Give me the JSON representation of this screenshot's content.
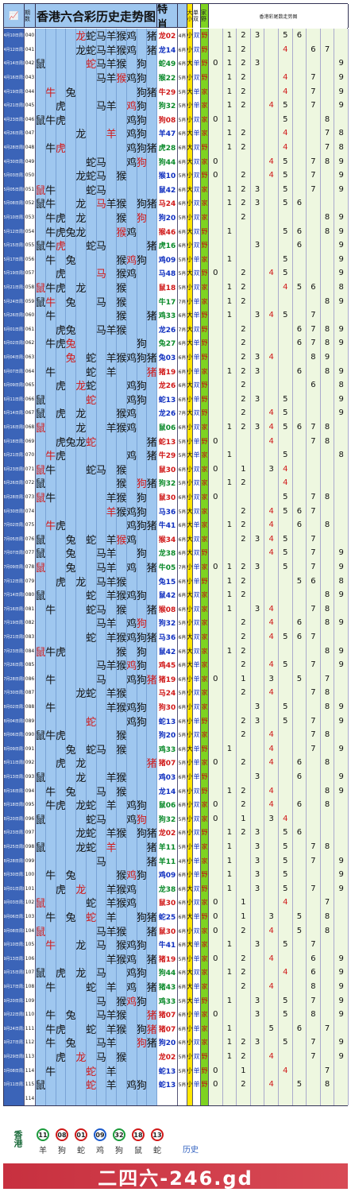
{
  "title": "香港六合彩历史走势图",
  "header": {
    "period": "期数",
    "special": "特肖",
    "size": "大小",
    "parity": "单双",
    "home": "家野",
    "tailTitle": "香港彩尾数走势图"
  },
  "zodiac": [
    "鼠",
    "牛",
    "虎",
    "兔",
    "龙",
    "蛇",
    "马",
    "羊",
    "猴",
    "鸡",
    "狗",
    "猪"
  ],
  "rows": [
    {
      "d": "04月10日周日",
      "p": "040",
      "z": "----GYGYGG-G",
      "r": "----1---0---",
      "sp": "龙02",
      "c": "red",
      "w": "4肖",
      "sz": "小",
      "pa": "双",
      "hw": "野",
      "t": "-123-56---"
    },
    {
      "d": "04月12日周二",
      "p": "041",
      "z": "----1GG1GG-1",
      "r": "------------",
      "sp": "龙14",
      "c": "blu",
      "w": "6肖",
      "sz": "小",
      "pa": "双",
      "hw": "野",
      "t": "-12--4-67-9"
    },
    {
      "d": "04月14日周四",
      "p": "042",
      "z": "1----1111-1-",
      "r": "-----1------",
      "sp": "蛇49",
      "c": "grn",
      "w": "6肖",
      "sz": "大",
      "pa": "单",
      "hw": "野",
      "t": "0123-----9"
    },
    {
      "d": "04月16日周六",
      "p": "043",
      "z": "------11111-",
      "r": "--------1---",
      "sp": "猴22",
      "c": "grn",
      "w": "5肖",
      "sz": "小",
      "pa": "双",
      "hw": "野",
      "t": "-12--4-7-9"
    },
    {
      "d": "04月19日周二",
      "p": "044",
      "z": "-1-1------11",
      "r": "-1----------",
      "sp": "牛29",
      "c": "red",
      "w": "5肖",
      "sz": "大",
      "pa": "单",
      "hw": "家",
      "t": "-12--4-7-9"
    },
    {
      "d": "04月21日周四",
      "p": "045",
      "z": "--1---11-11-",
      "r": "---------1--",
      "sp": "狗32",
      "c": "grn",
      "w": "5肖",
      "sz": "小",
      "pa": "单",
      "hw": "家",
      "t": "-12-45-7-9"
    },
    {
      "d": "04月23日周六",
      "p": "046",
      "z": "111------11-",
      "r": "------------",
      "sp": "狗08",
      "c": "red",
      "w": "5肖",
      "sz": "小",
      "pa": "双",
      "hw": "家",
      "t": "01---5--8-"
    },
    {
      "d": "04月26日周二",
      "p": "047",
      "z": "----1--1-11-",
      "r": "-------1----",
      "sp": "羊47",
      "c": "blu",
      "w": "6肖",
      "sz": "大",
      "pa": "单",
      "hw": "家",
      "t": "-12--4--78"
    },
    {
      "d": "04月28日周四",
      "p": "048",
      "z": "-11------111",
      "r": "--1---------",
      "sp": "虎28",
      "c": "grn",
      "w": "6肖",
      "sz": "大",
      "pa": "双",
      "hw": "野",
      "t": "-12--4--78"
    },
    {
      "d": "04月30日周六",
      "p": "049",
      "z": "-----11--11-",
      "r": "----------1-",
      "sp": "狗44",
      "c": "grn",
      "w": "6肖",
      "sz": "大",
      "pa": "双",
      "hw": "家",
      "t": "0---45-789"
    },
    {
      "d": "05月03日周二",
      "p": "050",
      "z": "----111-1---",
      "r": "------------",
      "sp": "猴10",
      "c": "blu",
      "w": "5肖",
      "sz": "小",
      "pa": "双",
      "hw": "野",
      "t": "0-2-45-7-9"
    },
    {
      "d": "05月05日周四",
      "p": "051",
      "z": "11---11-----",
      "r": "1-----------",
      "sp": "鼠42",
      "c": "blu",
      "w": "6肖",
      "sz": "大",
      "pa": "双",
      "hw": "家",
      "t": "-123-5-7-9"
    },
    {
      "d": "05月08日周日",
      "p": "052",
      "z": "11--1-111-11",
      "r": "------1-----",
      "sp": "马24",
      "c": "red",
      "w": "6肖",
      "sz": "小",
      "pa": "双",
      "hw": "家",
      "t": "-123-56---"
    },
    {
      "d": "05月10日周二",
      "p": "053",
      "z": "-11-1---1-1-",
      "r": "----------1-",
      "sp": "狗20",
      "c": "blu",
      "w": "5肖",
      "sz": "小",
      "pa": "双",
      "hw": "家",
      "t": "--2-----89"
    },
    {
      "d": "05月12日周四",
      "p": "054",
      "z": "-1111---11--",
      "r": "--------1---",
      "sp": "猴46",
      "c": "red",
      "w": "6肖",
      "sz": "大",
      "pa": "双",
      "hw": "野",
      "t": "-1---56-89"
    },
    {
      "d": "05月15日周日",
      "p": "055",
      "z": "111--11----1",
      "r": "--1---------",
      "sp": "虎16",
      "c": "grn",
      "w": "6肖",
      "sz": "小",
      "pa": "双",
      "hw": "野",
      "t": "---3--6--9"
    },
    {
      "d": "05月17日周二",
      "p": "056",
      "z": "-1-1----111-",
      "r": "---------1--",
      "sp": "鸡09",
      "c": "blu",
      "w": "5肖",
      "sz": "小",
      "pa": "单",
      "hw": "家",
      "t": "-1---5---9"
    },
    {
      "d": "05月19日周四",
      "p": "057",
      "z": "--1---1-11--",
      "r": "------1-----",
      "sp": "马48",
      "c": "blu",
      "w": "5肖",
      "sz": "大",
      "pa": "双",
      "hw": "野",
      "t": "0-2-45---9"
    },
    {
      "d": "05月21日周六",
      "p": "058",
      "z": "111-1---1---",
      "r": "1-----------",
      "sp": "鼠18",
      "c": "red",
      "w": "5肖",
      "sz": "小",
      "pa": "双",
      "hw": "家",
      "t": "-12--456-89"
    },
    {
      "d": "05月24日周二",
      "p": "059",
      "z": "11-1--1-1---",
      "r": "-1----------",
      "sp": "牛17",
      "c": "grn",
      "w": "7肖",
      "sz": "小",
      "pa": "单",
      "hw": "家",
      "t": "-12-----89"
    },
    {
      "d": "05月26日周四",
      "p": "060",
      "z": "-1------1--1",
      "r": "---------1--",
      "sp": "鸡33",
      "c": "grn",
      "w": "6肖",
      "sz": "大",
      "pa": "单",
      "hw": "野",
      "t": "-1-345-7-"
    },
    {
      "d": "06月01日周三",
      "p": "061",
      "z": "--11--111---",
      "r": "------------",
      "sp": "龙26",
      "c": "blu",
      "w": "7肖",
      "sz": "大",
      "pa": "双",
      "hw": "野",
      "t": "--2---6789"
    },
    {
      "d": "06月02日周四",
      "p": "062",
      "z": "-111------1-",
      "r": "---1--------",
      "sp": "兔27",
      "c": "grn",
      "w": "6肖",
      "sz": "大",
      "pa": "单",
      "hw": "野",
      "t": "--2---6789"
    },
    {
      "d": "06月04日周六",
      "p": "063",
      "z": "---1-1-11111",
      "r": "---1--------",
      "sp": "兔03",
      "c": "blu",
      "w": "6肖",
      "sz": "小",
      "pa": "单",
      "hw": "野",
      "t": "--234--89"
    },
    {
      "d": "06月07日周二",
      "p": "064",
      "z": "-1---1-1---1",
      "r": "-----------1",
      "sp": "猪19",
      "c": "red",
      "w": "6肖",
      "sz": "小",
      "pa": "单",
      "hw": "家",
      "t": "-123--6-89"
    },
    {
      "d": "06月09日周四",
      "p": "065",
      "z": "--1-11---11-",
      "r": "----1-------",
      "sp": "龙26",
      "c": "red",
      "w": "6肖",
      "sz": "大",
      "pa": "双",
      "hw": "野",
      "t": "--2----6-89"
    },
    {
      "d": "06月11日周六",
      "p": "066",
      "z": "1----1---11-",
      "r": "-----1------",
      "sp": "蛇13",
      "c": "blu",
      "w": "6肖",
      "sz": "小",
      "pa": "单",
      "hw": "野",
      "t": "--23-5---9"
    },
    {
      "d": "06月14日周二",
      "p": "067",
      "z": "1-1-1---11--",
      "r": "------------",
      "sp": "龙26",
      "c": "blu",
      "w": "7肖",
      "sz": "大",
      "pa": "双",
      "hw": "野",
      "t": "--2-45---9"
    },
    {
      "d": "06月16日周四",
      "p": "068",
      "z": "1---1--111--",
      "r": "1-----------",
      "sp": "鼠06",
      "c": "grn",
      "w": "6肖",
      "sz": "小",
      "pa": "双",
      "hw": "家",
      "t": "-12345678-"
    },
    {
      "d": "06月18日周六",
      "p": "069",
      "z": "--1111-----1",
      "r": "-----1------",
      "sp": "蛇13",
      "c": "red",
      "w": "5肖",
      "sz": "小",
      "pa": "单",
      "hw": "野",
      "t": "0---4--78"
    },
    {
      "d": "06月21日周二",
      "p": "070",
      "z": "-11------1-1",
      "r": "-1----------",
      "sp": "牛29",
      "c": "red",
      "w": "5肖",
      "sz": "大",
      "pa": "单",
      "hw": "家",
      "t": "-1---5---89"
    },
    {
      "d": "06月23日周四",
      "p": "071",
      "z": "11---11-1---",
      "r": "1-----------",
      "sp": "鼠30",
      "c": "red",
      "w": "6肖",
      "sz": "小",
      "pa": "双",
      "hw": "家",
      "t": "0-1-34---"
    },
    {
      "d": "06月26日周日",
      "p": "072",
      "z": "1-------1-11",
      "r": "----------1-",
      "sp": "狗32",
      "c": "grn",
      "w": "5肖",
      "sz": "小",
      "pa": "双",
      "hw": "家",
      "t": "-12--4----"
    },
    {
      "d": "06月28日周二",
      "p": "073",
      "z": "11-----11-1-",
      "r": "1-----------",
      "sp": "鼠30",
      "c": "red",
      "w": "6肖",
      "sz": "小",
      "pa": "双",
      "hw": "家",
      "t": "0----5-78"
    },
    {
      "d": "06月30日周四",
      "p": "074",
      "z": "-------1111-",
      "r": "-------1----",
      "sp": "马36",
      "c": "blu",
      "w": "5肖",
      "sz": "大",
      "pa": "双",
      "hw": "家",
      "t": "--2-4567-"
    },
    {
      "d": "07月02日周六",
      "p": "075",
      "z": "-11------111",
      "r": "-1----------",
      "sp": "牛41",
      "c": "blu",
      "w": "6肖",
      "sz": "大",
      "pa": "单",
      "hw": "家",
      "t": "-12-4-6-8"
    },
    {
      "d": "07月05日周二",
      "p": "076",
      "z": "1--1-1-111--",
      "r": "--------1---",
      "sp": "猴34",
      "c": "red",
      "w": "6肖",
      "sz": "大",
      "pa": "双",
      "hw": "家",
      "t": "--2345-7-"
    },
    {
      "d": "07月07日周四",
      "p": "077",
      "z": "1--1--11--1-",
      "r": "------------",
      "sp": "龙38",
      "c": "grn",
      "w": "6肖",
      "sz": "大",
      "pa": "双",
      "hw": "野",
      "t": "----45-7-9"
    },
    {
      "d": "07月09日周六",
      "p": "078",
      "z": "1--1--11-1-1",
      "r": "1-----------",
      "sp": "牛05",
      "c": "grn",
      "w": "7肖",
      "sz": "小",
      "pa": "单",
      "hw": "家",
      "t": "0123-5-7-9"
    },
    {
      "d": "07月12日周二",
      "p": "079",
      "z": "--1-1-111---",
      "r": "-----------1",
      "sp": "兔15",
      "c": "blu",
      "w": "6肖",
      "sz": "小",
      "pa": "单",
      "hw": "野",
      "t": "-12---56-89"
    },
    {
      "d": "07月14日周四",
      "p": "080",
      "z": "1----1-1111-",
      "r": "------------",
      "sp": "鼠42",
      "c": "blu",
      "w": "6肖",
      "sz": "大",
      "pa": "双",
      "hw": "家",
      "t": "-12-----89"
    },
    {
      "d": "07月16日周六",
      "p": "081",
      "z": "-1---11-1--1",
      "r": "------------",
      "sp": "猴08",
      "c": "red",
      "w": "6肖",
      "sz": "小",
      "pa": "双",
      "hw": "家",
      "t": "-1-34--78-"
    },
    {
      "d": "07月19日周二",
      "p": "082",
      "z": "------11-11-",
      "r": "----------1-",
      "sp": "狗32",
      "c": "blu",
      "w": "5肖",
      "sz": "小",
      "pa": "双",
      "hw": "家",
      "t": "--2-4-6-89"
    },
    {
      "d": "07月21日周四",
      "p": "083",
      "z": "-----1-11111",
      "r": "------------",
      "sp": "马36",
      "c": "blu",
      "w": "6肖",
      "sz": "大",
      "pa": "双",
      "hw": "家",
      "t": "--2-4567-"
    },
    {
      "d": "07月23日周六",
      "p": "084",
      "z": "111-----1-1-",
      "r": "1-----------",
      "sp": "鼠42",
      "c": "blu",
      "w": "6肖",
      "sz": "大",
      "pa": "双",
      "hw": "家",
      "t": "-12-----89"
    },
    {
      "d": "07月26日周二",
      "p": "085",
      "z": "------11111-",
      "r": "---------1--",
      "sp": "鸡45",
      "c": "red",
      "w": "6肖",
      "sz": "大",
      "pa": "单",
      "hw": "家",
      "t": "--2-45-7-9"
    },
    {
      "d": "07月28日周四",
      "p": "086",
      "z": "-1----1--111",
      "r": "-----------1",
      "sp": "猪19",
      "c": "red",
      "w": "6肖",
      "sz": "小",
      "pa": "单",
      "hw": "家",
      "t": "0-1-3-5-7"
    },
    {
      "d": "07月30日周六",
      "p": "087",
      "z": "----11-11---",
      "r": "------1-----",
      "sp": "马24",
      "c": "red",
      "w": "5肖",
      "sz": "小",
      "pa": "双",
      "hw": "家",
      "t": "--2-4--78"
    },
    {
      "d": "08月02日周二",
      "p": "088",
      "z": "-1-----1111-",
      "r": "------------",
      "sp": "狗30",
      "c": "red",
      "w": "6肖",
      "sz": "小",
      "pa": "双",
      "hw": "家",
      "t": "---3-5--89"
    },
    {
      "d": "08月04日周四",
      "p": "089",
      "z": "-----1---11-",
      "r": "-----1------",
      "sp": "蛇13",
      "c": "blu",
      "w": "6肖",
      "sz": "小",
      "pa": "单",
      "hw": "野",
      "t": "--23-5-7-9"
    },
    {
      "d": "08月06日周六",
      "p": "090",
      "z": "111-----1---",
      "r": "----------1-",
      "sp": "狗20",
      "c": "blu",
      "w": "5肖",
      "sz": "小",
      "pa": "双",
      "hw": "家",
      "t": "--2-4--78"
    },
    {
      "d": "08月09日周二",
      "p": "091",
      "z": "---1-11-1---",
      "r": "---------1--",
      "sp": "鸡33",
      "c": "grn",
      "w": "6肖",
      "sz": "大",
      "pa": "单",
      "hw": "野",
      "t": "-1--4--7-9"
    },
    {
      "d": "08月11日周四",
      "p": "092",
      "z": "--1-1------1",
      "r": "-----------1",
      "sp": "猪07",
      "c": "red",
      "w": "5肖",
      "sz": "小",
      "pa": "单",
      "hw": "家",
      "t": "0-2-4-6-8"
    },
    {
      "d": "08月13日周六",
      "p": "093",
      "z": "1---1--11---",
      "r": "------------",
      "sp": "鸡03",
      "c": "blu",
      "w": "6肖",
      "sz": "小",
      "pa": "单",
      "hw": "野",
      "t": "---3--6--9"
    },
    {
      "d": "08月16日周二",
      "p": "094",
      "z": "-1-1--1-1---",
      "r": "------------",
      "sp": "龙14",
      "c": "blu",
      "w": "6肖",
      "sz": "小",
      "pa": "双",
      "hw": "野",
      "t": "-12-4---89"
    },
    {
      "d": "08月18日周四",
      "p": "095",
      "z": "-11-11-1-11-",
      "r": "------------",
      "sp": "鼠06",
      "c": "grn",
      "w": "6肖",
      "sz": "小",
      "pa": "双",
      "hw": "家",
      "t": "0-2-4-6-8"
    },
    {
      "d": "08月20日周六",
      "p": "096",
      "z": "1----11--11-",
      "r": "----------1-",
      "sp": "狗32",
      "c": "grn",
      "w": "5肖",
      "sz": "小",
      "pa": "双",
      "hw": "家",
      "t": "0-1-34----"
    },
    {
      "d": "08月23日周二",
      "p": "097",
      "z": "----11-11-11",
      "r": "------------",
      "sp": "龙02",
      "c": "red",
      "w": "6肖",
      "sz": "小",
      "pa": "双",
      "hw": "野",
      "t": "-123-56---"
    },
    {
      "d": "08月25日周四",
      "p": "098",
      "z": "1---11-1---1",
      "r": "-------1----",
      "sp": "羊11",
      "c": "grn",
      "w": "5肖",
      "sz": "小",
      "pa": "单",
      "hw": "家",
      "t": "-1-3-5-78"
    },
    {
      "d": "08月28日周日",
      "p": "099",
      "z": "------1----1",
      "r": "-------1----",
      "sp": "羊11",
      "c": "grn",
      "w": "4肖",
      "sz": "小",
      "pa": "单",
      "hw": "家",
      "t": "-1-3-5-7-9"
    },
    {
      "d": "08月30日周二",
      "p": "100",
      "z": "-1-1----111-",
      "r": "---------1--",
      "sp": "鸡09",
      "c": "blu",
      "w": "6肖",
      "sz": "小",
      "pa": "单",
      "hw": "野",
      "t": "-1-3-5---9"
    },
    {
      "d": "09月01日周四",
      "p": "101",
      "z": "--1-1--111--",
      "r": "----1-------",
      "sp": "龙38",
      "c": "grn",
      "w": "6肖",
      "sz": "大",
      "pa": "双",
      "hw": "野",
      "t": "-1-3-5-7-9"
    },
    {
      "d": "09月03日周六",
      "p": "102",
      "z": "1----1-111--",
      "r": "1-----------",
      "sp": "鼠30",
      "c": "red",
      "w": "6肖",
      "sz": "小",
      "pa": "双",
      "hw": "家",
      "t": "0-1--4--7-9"
    },
    {
      "d": "09月06日周二",
      "p": "103",
      "z": "-1-1-1-1--11",
      "r": "-----1------",
      "sp": "蛇25",
      "c": "blu",
      "w": "6肖",
      "sz": "大",
      "pa": "单",
      "hw": "野",
      "t": "0-1-3-5-8-9"
    },
    {
      "d": "09月08日周四",
      "p": "104",
      "z": "1-----111--1",
      "r": "1-----------",
      "sp": "鼠30",
      "c": "red",
      "w": "6肖",
      "sz": "小",
      "pa": "双",
      "hw": "家",
      "t": "0-2-4-5-8-9"
    },
    {
      "d": "09月10日周六",
      "p": "105",
      "z": "-1--1-1-111-",
      "r": "-1----------",
      "sp": "牛41",
      "c": "blu",
      "w": "6肖",
      "sz": "大",
      "pa": "单",
      "hw": "家",
      "t": "-1-3-5-7-"
    },
    {
      "d": "09月13日周二",
      "p": "106",
      "z": "-------111-1",
      "r": "------------",
      "sp": "猪19",
      "c": "red",
      "w": "5肖",
      "sz": "小",
      "pa": "单",
      "hw": "家",
      "t": "0-2-4--6-9"
    },
    {
      "d": "09月15日周四",
      "p": "107",
      "z": "1-1-1-1--11-",
      "r": "------------",
      "sp": "狗44",
      "c": "grn",
      "w": "6肖",
      "sz": "大",
      "pa": "双",
      "hw": "家",
      "t": "-12--4-6-9"
    },
    {
      "d": "09月17日周六",
      "p": "108",
      "z": "-1---1-1-1-1",
      "r": "------------",
      "sp": "猪43",
      "c": "grn",
      "w": "6肖",
      "sz": "大",
      "pa": "单",
      "hw": "家",
      "t": "--2-4--8-9"
    },
    {
      "d": "09月20日周二",
      "p": "109",
      "z": "------1-111-",
      "r": "---------1--",
      "sp": "鸡33",
      "c": "grn",
      "w": "5肖",
      "sz": "大",
      "pa": "单",
      "hw": "野",
      "t": "-1-3-5-7-9"
    },
    {
      "d": "09月22日周四",
      "p": "110",
      "z": "-1-1--111--1",
      "r": "-----------1",
      "sp": "猪07",
      "c": "red",
      "w": "6肖",
      "sz": "小",
      "pa": "单",
      "hw": "家",
      "t": "0--3-5-8-9"
    },
    {
      "d": "09月24日周六",
      "p": "111",
      "z": "-11--1-11-11",
      "r": "-----------1",
      "sp": "猪07",
      "c": "red",
      "w": "6肖",
      "sz": "小",
      "pa": "单",
      "hw": "家",
      "t": "-1--5-6-7-9"
    },
    {
      "d": "09月27日周二",
      "p": "112",
      "z": "-1-1--11--11",
      "r": "----------1-",
      "sp": "狗20",
      "c": "blu",
      "w": "6肖",
      "sz": "小",
      "pa": "双",
      "hw": "家",
      "t": "-123-5-7-9"
    },
    {
      "d": "09月29日周四",
      "p": "113",
      "z": "--1-1-1-1---",
      "r": "----1-------",
      "sp": "龙02",
      "c": "red",
      "w": "5肖",
      "sz": "小",
      "pa": "双",
      "hw": "野",
      "t": "-12-4--7-9"
    },
    {
      "d": "10月08日周六",
      "p": "114",
      "z": "-1---1-1----",
      "r": "-----1------",
      "sp": "蛇13",
      "c": "blu",
      "w": "5肖",
      "sz": "小",
      "pa": "单",
      "hw": "野",
      "t": "0-1--4--7-9"
    },
    {
      "d": "10月11日周二",
      "p": "115",
      "z": "1----1-1-11-",
      "r": "-----1------",
      "sp": "蛇13",
      "c": "blu",
      "w": "5肖",
      "sz": "小",
      "pa": "单",
      "hw": "野",
      "t": "0-2-4-5-8-9"
    },
    {
      "d": "",
      "p": "114",
      "z": "------------",
      "r": "------------",
      "sp": "",
      "c": "blu",
      "w": "",
      "sz": "",
      "pa": "",
      "hw": "",
      "t": "----------"
    }
  ],
  "footer": {
    "region": "香港",
    "balls": [
      {
        "n": "11",
        "z": "羊",
        "c": "g"
      },
      {
        "n": "08",
        "z": "狗",
        "c": "r"
      },
      {
        "n": "01",
        "z": "蛇",
        "c": "r"
      },
      {
        "n": "09",
        "z": "鸡",
        "c": "b"
      },
      {
        "n": "32",
        "z": "狗",
        "c": "g"
      },
      {
        "n": "18",
        "z": "鼠",
        "c": "r"
      },
      {
        "n": "13",
        "z": "蛇",
        "c": "r"
      }
    ],
    "history": "历史",
    "banner": "二四六-246.gd"
  }
}
